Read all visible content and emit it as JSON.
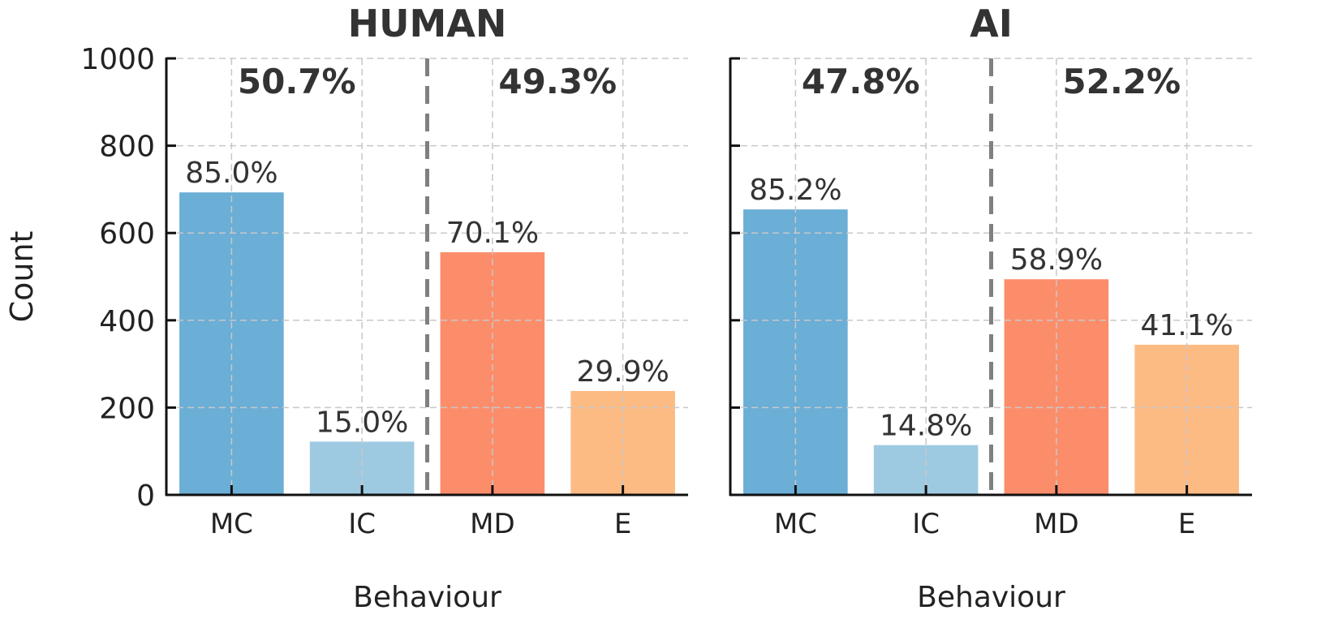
{
  "chart_data": [
    {
      "type": "bar",
      "title": "HUMAN",
      "xlabel": "Behaviour",
      "ylabel": "Count",
      "ylim": [
        0,
        1000
      ],
      "yticks": [
        0,
        200,
        400,
        600,
        800,
        1000
      ],
      "grid": true,
      "categories": [
        "MC",
        "IC",
        "MD",
        "E"
      ],
      "values": [
        693,
        122,
        556,
        238
      ],
      "bar_labels": [
        "85.0%",
        "15.0%",
        "70.1%",
        "29.9%"
      ],
      "group_labels": [
        "50.7%",
        "49.3%"
      ],
      "colors": [
        "#6baed6",
        "#9ecae1",
        "#fc8d6b",
        "#fdbb84"
      ]
    },
    {
      "type": "bar",
      "title": "AI",
      "xlabel": "Behaviour",
      "ylabel": "",
      "ylim": [
        0,
        1000
      ],
      "yticks": [
        0,
        200,
        400,
        600,
        800,
        1000
      ],
      "grid": true,
      "categories": [
        "MC",
        "IC",
        "MD",
        "E"
      ],
      "values": [
        654,
        114,
        494,
        344
      ],
      "bar_labels": [
        "85.2%",
        "14.8%",
        "58.9%",
        "41.1%"
      ],
      "group_labels": [
        "47.8%",
        "52.2%"
      ],
      "colors": [
        "#6baed6",
        "#9ecae1",
        "#fc8d6b",
        "#fdbb84"
      ]
    }
  ]
}
